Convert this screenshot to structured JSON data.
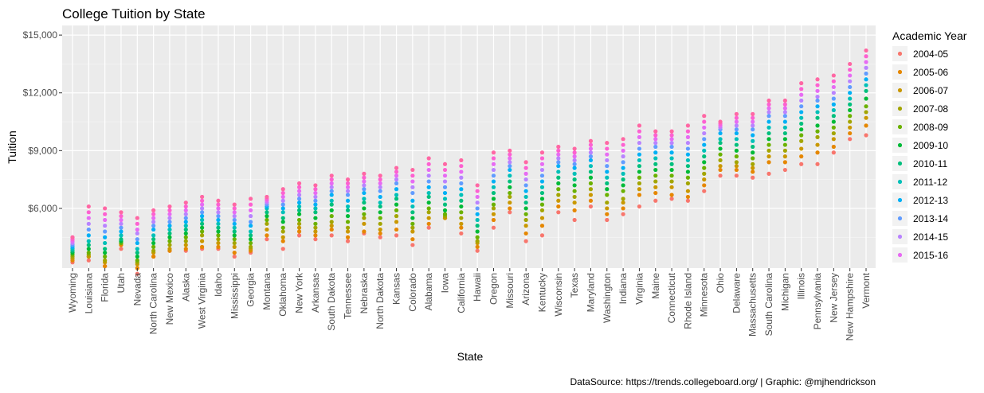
{
  "chart_data": {
    "type": "scatter",
    "title": "College Tuition by State",
    "xlabel": "State",
    "ylabel": "Tuition",
    "caption": "DataSource: https://trends.collegeboard.org/ | Graphic: @mjhendrickson",
    "ylim": [
      2900,
      15500
    ],
    "y_ticks": [
      {
        "value": 6000,
        "label": "$6,000"
      },
      {
        "value": 9000,
        "label": "$9,000"
      },
      {
        "value": 12000,
        "label": "$12,000"
      },
      {
        "value": 15000,
        "label": "$15,000"
      }
    ],
    "grid": true,
    "legend": {
      "title": "Academic Year",
      "position": "right"
    },
    "categories": [
      "Wyoming",
      "Louisiana",
      "Florida",
      "Utah",
      "Nevada",
      "North Carolina",
      "New Mexico",
      "Alaska",
      "West Virginia",
      "Idaho",
      "Mississippi",
      "Georgia",
      "Montana",
      "Oklahoma",
      "New York",
      "Arkansas",
      "South Dakota",
      "Tennessee",
      "Nebraska",
      "North Dakota",
      "Kansas",
      "Colorado",
      "Alabama",
      "Iowa",
      "California",
      "Hawaii",
      "Oregon",
      "Missouri",
      "Arizona",
      "Kentucky",
      "Wisconsin",
      "Texas",
      "Maryland",
      "Washington",
      "Indiana",
      "Virginia",
      "Maine",
      "Connecticut",
      "Rhode Island",
      "Minnesota",
      "Ohio",
      "Delaware",
      "Massachusetts",
      "South Carolina",
      "Michigan",
      "Illinois",
      "Pennsylvania",
      "New Jersey",
      "New Hampshire",
      "Vermont"
    ],
    "series": [
      {
        "name": "2004-05",
        "color": "#F8766D",
        "values": [
          3200,
          3300,
          3000,
          3900,
          2600,
          3500,
          3800,
          3800,
          3900,
          3900,
          3500,
          3700,
          4400,
          3900,
          4600,
          4400,
          4600,
          4300,
          4700,
          4500,
          4600,
          4100,
          5000,
          5500,
          4700,
          3800,
          5000,
          5800,
          4300,
          4600,
          5800,
          5400,
          6100,
          5400,
          5700,
          6100,
          6400,
          6500,
          6400,
          6900,
          7700,
          7700,
          7600,
          7800,
          8000,
          8300,
          8300,
          8900,
          9600,
          9800
        ]
      },
      {
        "name": "2005-06",
        "color": "#E58700",
        "values": [
          3300,
          3500,
          3000,
          4100,
          2900,
          3500,
          3800,
          3900,
          4000,
          4000,
          3700,
          3800,
          4600,
          4300,
          4800,
          4600,
          4900,
          4500,
          4800,
          4700,
          4900,
          4400,
          5200,
          5500,
          5000,
          4000,
          5400,
          6000,
          4700,
          5100,
          6100,
          5900,
          6400,
          5700,
          6000,
          6700,
          6800,
          6700,
          6600,
          7200,
          8000,
          8000,
          7900,
          8400,
          8400,
          8700,
          8900,
          9200,
          9900,
          10300
        ]
      },
      {
        "name": "2006-07",
        "color": "#C99800",
        "values": [
          3400,
          3500,
          3200,
          4200,
          3100,
          3700,
          3900,
          4100,
          4300,
          4200,
          4000,
          3900,
          4900,
          4500,
          5000,
          4800,
          5100,
          4800,
          5200,
          4900,
          5300,
          4800,
          5500,
          5500,
          5200,
          4200,
          5700,
          6300,
          5100,
          5500,
          6400,
          6300,
          6700,
          6000,
          6300,
          7000,
          7100,
          7100,
          6900,
          7500,
          8200,
          8200,
          8100,
          8700,
          8700,
          9100,
          9300,
          9600,
          10200,
          10700
        ]
      },
      {
        "name": "2007-08",
        "color": "#A3A500",
        "values": [
          3500,
          3600,
          3300,
          4200,
          3200,
          3800,
          4100,
          4300,
          4600,
          4400,
          4200,
          4000,
          5200,
          4800,
          5200,
          5000,
          5300,
          5000,
          5500,
          5200,
          5600,
          5000,
          5800,
          5600,
          5500,
          4300,
          6000,
          6600,
          5400,
          5900,
          6700,
          6600,
          7000,
          6300,
          6500,
          7300,
          7400,
          7400,
          7300,
          7800,
          8500,
          8400,
          8300,
          9000,
          9000,
          9500,
          9700,
          9900,
          10500,
          11000
        ]
      },
      {
        "name": "2008-09",
        "color": "#6BB100",
        "values": [
          3600,
          3700,
          3500,
          4200,
          3300,
          4000,
          4300,
          4500,
          4800,
          4600,
          4400,
          4200,
          5400,
          5000,
          5400,
          5200,
          5600,
          5300,
          5700,
          5500,
          5900,
          5200,
          6000,
          5700,
          5800,
          4500,
          6200,
          6800,
          5700,
          6200,
          7000,
          6900,
          7300,
          6700,
          6900,
          7600,
          7700,
          7700,
          7600,
          8100,
          8800,
          8700,
          8600,
          9300,
          9300,
          9800,
          10000,
          10200,
          10800,
          11300
        ]
      },
      {
        "name": "2009-10",
        "color": "#00BA38",
        "values": [
          3700,
          3900,
          3700,
          4300,
          3500,
          4200,
          4500,
          4700,
          5000,
          4800,
          4600,
          4400,
          5600,
          5300,
          5700,
          5500,
          5900,
          5600,
          6000,
          5800,
          6200,
          5500,
          6300,
          5900,
          6100,
          4800,
          6500,
          7100,
          6000,
          6500,
          7300,
          7200,
          7600,
          7000,
          7200,
          7900,
          8000,
          8000,
          7900,
          8400,
          9100,
          9000,
          8900,
          9600,
          9600,
          10100,
          10300,
          10500,
          11100,
          11700
        ]
      },
      {
        "name": "2010-11",
        "color": "#00BF7D",
        "values": [
          3800,
          4100,
          3900,
          4400,
          3700,
          4400,
          4700,
          4900,
          5200,
          5000,
          4800,
          4600,
          5800,
          5500,
          5900,
          5800,
          6200,
          5900,
          6300,
          6100,
          6500,
          5800,
          6600,
          6200,
          6400,
          5100,
          6800,
          7400,
          6300,
          6800,
          7600,
          7500,
          7900,
          7300,
          7500,
          8200,
          8300,
          8300,
          8200,
          8700,
          9400,
          9300,
          9200,
          9900,
          9900,
          10400,
          10700,
          10800,
          11400,
          12100
        ]
      },
      {
        "name": "2011-12",
        "color": "#00C0B8",
        "values": [
          3900,
          4300,
          4200,
          4600,
          3900,
          4600,
          4900,
          5100,
          5400,
          5200,
          5000,
          4800,
          6000,
          5800,
          6100,
          6000,
          6400,
          6100,
          6500,
          6300,
          6700,
          6100,
          6800,
          6500,
          6700,
          5400,
          7100,
          7700,
          6600,
          7100,
          7900,
          7800,
          8200,
          7600,
          7800,
          8500,
          8600,
          8600,
          8500,
          9000,
          9600,
          9600,
          9500,
          10200,
          10200,
          10700,
          11000,
          11100,
          11700,
          12400
        ]
      },
      {
        "name": "2012-13",
        "color": "#00B0F6",
        "values": [
          4000,
          4600,
          4500,
          4800,
          4200,
          4900,
          5100,
          5300,
          5600,
          5400,
          5200,
          5100,
          6100,
          6000,
          6300,
          6200,
          6700,
          6400,
          6800,
          6600,
          7000,
          6400,
          7100,
          6800,
          7000,
          5700,
          7400,
          8000,
          6900,
          7400,
          8200,
          8100,
          8500,
          7900,
          8100,
          8800,
          8900,
          8900,
          8800,
          9300,
          9900,
          9900,
          9800,
          10500,
          10500,
          11000,
          11300,
          11400,
          12000,
          12700
        ]
      },
      {
        "name": "2013-14",
        "color": "#619CFF",
        "values": [
          4100,
          4900,
          4800,
          5000,
          4400,
          5100,
          5300,
          5500,
          5800,
          5600,
          5400,
          5300,
          6200,
          6200,
          6500,
          6400,
          6900,
          6700,
          7000,
          6900,
          7300,
          6800,
          7400,
          7100,
          7300,
          6000,
          7700,
          8200,
          7200,
          7700,
          8400,
          8300,
          8700,
          8200,
          8400,
          9100,
          9200,
          9200,
          9100,
          9600,
          10100,
          10100,
          10100,
          10800,
          10800,
          11300,
          11600,
          11700,
          12300,
          13000
        ]
      },
      {
        "name": "2014-15",
        "color": "#B983FF",
        "values": [
          4200,
          5200,
          5100,
          5200,
          4700,
          5300,
          5500,
          5700,
          6000,
          5800,
          5600,
          5600,
          6300,
          6400,
          6700,
          6600,
          7100,
          6900,
          7200,
          7100,
          7500,
          7100,
          7700,
          7400,
          7600,
          6300,
          8000,
          8400,
          7500,
          8000,
          8600,
          8500,
          8900,
          8500,
          8700,
          9400,
          9400,
          9400,
          9400,
          9900,
          10200,
          10300,
          10300,
          11000,
          11000,
          11600,
          11800,
          12000,
          12600,
          13300
        ]
      },
      {
        "name": "2015-16",
        "color": "#E76BF3",
        "values": [
          4300,
          5500,
          5400,
          5400,
          4900,
          5500,
          5700,
          5900,
          6200,
          6000,
          5800,
          5900,
          6400,
          6600,
          6900,
          6800,
          7300,
          7100,
          7400,
          7300,
          7700,
          7400,
          8000,
          7700,
          7900,
          6600,
          8300,
          8600,
          7800,
          8300,
          8800,
          8700,
          9100,
          8800,
          9000,
          9700,
          9600,
          9600,
          9700,
          10200,
          10300,
          10500,
          10500,
          11200,
          11200,
          11900,
          12100,
          12300,
          12900,
          13600
        ]
      },
      {
        "name": "",
        "color": "#FD61D1",
        "values": [
          4400,
          5800,
          5700,
          5600,
          5200,
          5700,
          5900,
          6100,
          6400,
          6200,
          6000,
          6200,
          6500,
          6800,
          7100,
          7000,
          7500,
          7300,
          7600,
          7500,
          7900,
          7700,
          8300,
          8000,
          8200,
          6900,
          8600,
          8800,
          8100,
          8600,
          9000,
          8900,
          9300,
          9100,
          9300,
          10000,
          9800,
          9800,
          10000,
          10500,
          10400,
          10700,
          10700,
          11400,
          11400,
          12200,
          12400,
          12600,
          13200,
          13900
        ]
      },
      {
        "name": "",
        "color": "#FF67A4",
        "values": [
          4500,
          6100,
          6000,
          5800,
          5500,
          5900,
          6100,
          6300,
          6600,
          6400,
          6200,
          6500,
          6600,
          7000,
          7300,
          7200,
          7700,
          7500,
          7800,
          7700,
          8100,
          8000,
          8600,
          8300,
          8500,
          7200,
          8900,
          9000,
          8400,
          8900,
          9200,
          9100,
          9500,
          9400,
          9600,
          10300,
          10000,
          10000,
          10300,
          10800,
          10500,
          10900,
          10900,
          11600,
          11600,
          12500,
          12700,
          12900,
          13500,
          14200
        ]
      }
    ]
  }
}
